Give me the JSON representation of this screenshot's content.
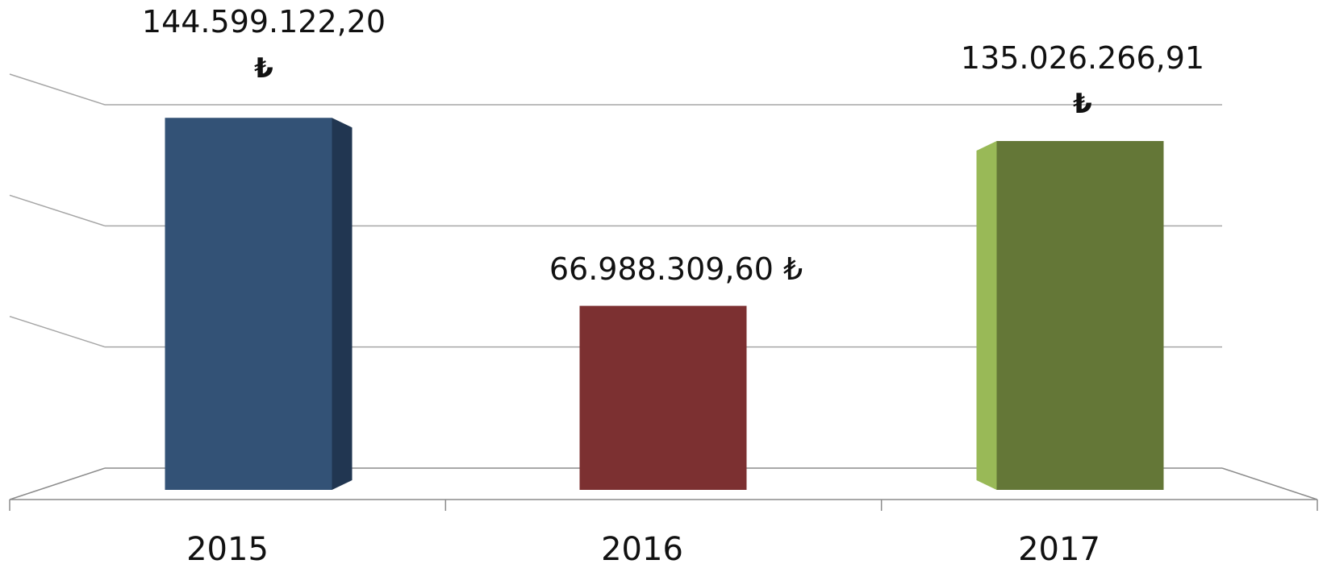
{
  "chart_data": {
    "type": "bar",
    "categories": [
      "2015",
      "2016",
      "2017"
    ],
    "values": [
      144599122.2,
      66988309.6,
      135026266.91
    ],
    "data_labels": [
      "144.599.122,20",
      "66.988.309,60",
      "135.026.266,91"
    ],
    "currency_symbol": "₺",
    "colors": [
      {
        "front": "#335276",
        "side": "#213651"
      },
      {
        "front": "#7c3031",
        "side": "#5d2223"
      },
      {
        "front": "#647737",
        "side": "#99b957"
      }
    ],
    "ylim": [
      0,
      150000000
    ],
    "gridline_values": [
      50000000,
      100000000,
      150000000
    ],
    "grid": true,
    "legend": "none",
    "style": "3d-clustered-column"
  }
}
